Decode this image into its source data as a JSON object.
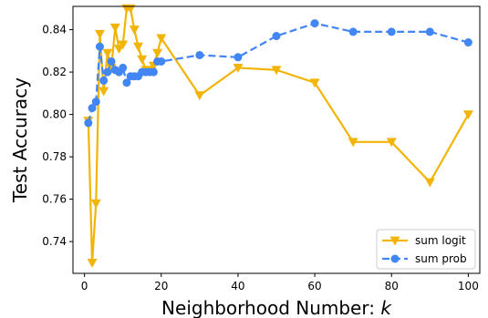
{
  "chart_data": {
    "type": "line",
    "xlabel": "Neighborhood Number: ",
    "xlabel_var": "k",
    "ylabel": "Test Accuracy",
    "xlim": [
      -3,
      103
    ],
    "ylim": [
      0.725,
      0.851
    ],
    "xticks": [
      0,
      20,
      40,
      60,
      80,
      100
    ],
    "yticks": [
      0.74,
      0.76,
      0.78,
      0.8,
      0.82,
      0.84
    ],
    "ytick_labels": [
      "0.74",
      "0.76",
      "0.78",
      "0.80",
      "0.82",
      "0.84"
    ],
    "legend_position": "bottom-right",
    "grid": false,
    "series": [
      {
        "name": "sum logit",
        "color": "#f2b406",
        "marker": "triangle-down",
        "linestyle": "solid",
        "x": [
          1,
          2,
          3,
          4,
          5,
          6,
          7,
          8,
          9,
          10,
          11,
          12,
          13,
          14,
          15,
          16,
          17,
          18,
          19,
          20,
          30,
          40,
          50,
          60,
          70,
          80,
          90,
          100
        ],
        "y": [
          0.797,
          0.73,
          0.758,
          0.838,
          0.811,
          0.829,
          0.822,
          0.841,
          0.831,
          0.833,
          0.85,
          0.85,
          0.84,
          0.832,
          0.826,
          0.821,
          0.821,
          0.823,
          0.829,
          0.836,
          0.809,
          0.822,
          0.821,
          0.815,
          0.787,
          0.787,
          0.768,
          0.8
        ]
      },
      {
        "name": "sum prob",
        "color": "#4285f4",
        "marker": "circle",
        "linestyle": "dashed",
        "x": [
          1,
          2,
          3,
          4,
          5,
          6,
          7,
          8,
          9,
          10,
          11,
          12,
          13,
          14,
          15,
          16,
          17,
          18,
          19,
          20,
          30,
          40,
          50,
          60,
          70,
          80,
          90,
          100
        ],
        "y": [
          0.796,
          0.803,
          0.806,
          0.832,
          0.816,
          0.82,
          0.825,
          0.821,
          0.82,
          0.822,
          0.815,
          0.818,
          0.818,
          0.818,
          0.82,
          0.82,
          0.82,
          0.82,
          0.825,
          0.825,
          0.828,
          0.827,
          0.837,
          0.843,
          0.839,
          0.839,
          0.839,
          0.834
        ]
      }
    ]
  }
}
